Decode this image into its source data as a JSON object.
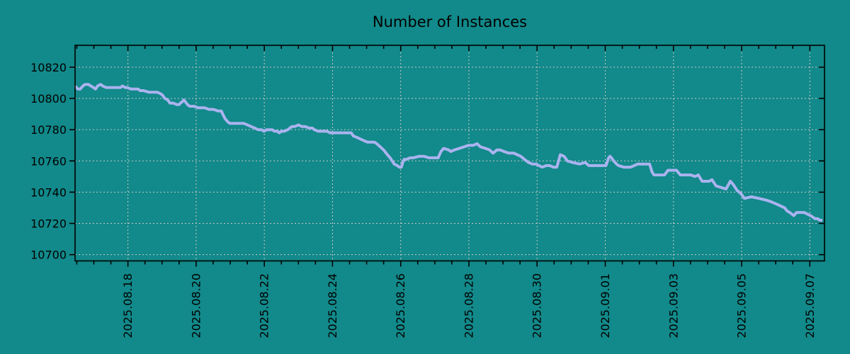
{
  "title": "Number of Instances",
  "colors": {
    "background": "#12898a",
    "line": "#aab3ef",
    "grid": "#c8c8c8",
    "axis": "#000000",
    "text": "#000000"
  },
  "chart_data": {
    "type": "line",
    "title": "Number of Instances",
    "xlabel": "",
    "ylabel": "",
    "grid": true,
    "legend": "none",
    "x_unit": "days_since_2025-08-16",
    "x_range": [
      0.45,
      22.43
    ],
    "y_range": [
      10696,
      10834
    ],
    "y_ticks": [
      10700,
      10720,
      10740,
      10760,
      10780,
      10800,
      10820
    ],
    "x_ticks": [
      {
        "day": 2,
        "label": "2025.08.18"
      },
      {
        "day": 4,
        "label": "2025.08.20"
      },
      {
        "day": 6,
        "label": "2025.08.22"
      },
      {
        "day": 8,
        "label": "2025.08.24"
      },
      {
        "day": 10,
        "label": "2025.08.26"
      },
      {
        "day": 12,
        "label": "2025.08.28"
      },
      {
        "day": 14,
        "label": "2025.08.30"
      },
      {
        "day": 16,
        "label": "2025.09.01"
      },
      {
        "day": 18,
        "label": "2025.09.03"
      },
      {
        "day": 20,
        "label": "2025.09.05"
      },
      {
        "day": 22,
        "label": "2025.09.07"
      }
    ],
    "minor_tick_step_days": 0.5,
    "series": [
      {
        "name": "Number of Instances",
        "points": [
          [
            0.45,
            10808
          ],
          [
            0.53,
            10806
          ],
          [
            0.6,
            10806
          ],
          [
            0.68,
            10808
          ],
          [
            0.74,
            10809
          ],
          [
            0.84,
            10809
          ],
          [
            0.91,
            10808
          ],
          [
            0.99,
            10807
          ],
          [
            1.05,
            10806
          ],
          [
            1.11,
            10808
          ],
          [
            1.2,
            10809
          ],
          [
            1.26,
            10808
          ],
          [
            1.36,
            10807
          ],
          [
            1.47,
            10807
          ],
          [
            1.57,
            10807
          ],
          [
            1.67,
            10807
          ],
          [
            1.78,
            10807
          ],
          [
            1.84,
            10808
          ],
          [
            1.92,
            10807
          ],
          [
            1.98,
            10807
          ],
          [
            2.09,
            10806
          ],
          [
            2.19,
            10806
          ],
          [
            2.3,
            10806
          ],
          [
            2.36,
            10805
          ],
          [
            2.46,
            10805
          ],
          [
            2.61,
            10804
          ],
          [
            2.75,
            10804
          ],
          [
            2.86,
            10804
          ],
          [
            2.96,
            10803
          ],
          [
            3.02,
            10802
          ],
          [
            3.08,
            10800
          ],
          [
            3.17,
            10799
          ],
          [
            3.23,
            10797
          ],
          [
            3.33,
            10797
          ],
          [
            3.44,
            10796
          ],
          [
            3.5,
            10796
          ],
          [
            3.54,
            10797
          ],
          [
            3.6,
            10798
          ],
          [
            3.64,
            10799
          ],
          [
            3.68,
            10798
          ],
          [
            3.75,
            10796
          ],
          [
            3.81,
            10795
          ],
          [
            3.89,
            10795
          ],
          [
            3.95,
            10795
          ],
          [
            4.06,
            10794
          ],
          [
            4.16,
            10794
          ],
          [
            4.26,
            10794
          ],
          [
            4.37,
            10793
          ],
          [
            4.51,
            10793
          ],
          [
            4.64,
            10792
          ],
          [
            4.74,
            10792
          ],
          [
            4.78,
            10790
          ],
          [
            4.85,
            10787
          ],
          [
            4.93,
            10785
          ],
          [
            4.99,
            10784
          ],
          [
            5.09,
            10784
          ],
          [
            5.2,
            10784
          ],
          [
            5.3,
            10784
          ],
          [
            5.4,
            10784
          ],
          [
            5.51,
            10783
          ],
          [
            5.61,
            10782
          ],
          [
            5.72,
            10781
          ],
          [
            5.82,
            10780
          ],
          [
            5.92,
            10780
          ],
          [
            5.99,
            10779
          ],
          [
            6.07,
            10780
          ],
          [
            6.13,
            10780
          ],
          [
            6.23,
            10780
          ],
          [
            6.3,
            10779
          ],
          [
            6.38,
            10779
          ],
          [
            6.44,
            10778
          ],
          [
            6.5,
            10779
          ],
          [
            6.58,
            10779
          ],
          [
            6.69,
            10780
          ],
          [
            6.75,
            10781
          ],
          [
            6.81,
            10782
          ],
          [
            6.89,
            10782
          ],
          [
            7.0,
            10783
          ],
          [
            7.1,
            10782
          ],
          [
            7.2,
            10782
          ],
          [
            7.31,
            10781
          ],
          [
            7.41,
            10781
          ],
          [
            7.47,
            10780
          ],
          [
            7.58,
            10779
          ],
          [
            7.64,
            10779
          ],
          [
            7.74,
            10779
          ],
          [
            7.84,
            10779
          ],
          [
            7.93,
            10778
          ],
          [
            7.99,
            10778
          ],
          [
            8.13,
            10778
          ],
          [
            8.34,
            10778
          ],
          [
            8.55,
            10778
          ],
          [
            8.61,
            10776
          ],
          [
            8.72,
            10775
          ],
          [
            8.82,
            10774
          ],
          [
            8.92,
            10773
          ],
          [
            9.03,
            10772
          ],
          [
            9.13,
            10772
          ],
          [
            9.23,
            10772
          ],
          [
            9.3,
            10771
          ],
          [
            9.4,
            10769
          ],
          [
            9.5,
            10767
          ],
          [
            9.61,
            10764
          ],
          [
            9.69,
            10762
          ],
          [
            9.75,
            10760
          ],
          [
            9.81,
            10758
          ],
          [
            9.9,
            10757
          ],
          [
            9.96,
            10756
          ],
          [
            10.02,
            10756
          ],
          [
            10.06,
            10759
          ],
          [
            10.1,
            10761
          ],
          [
            10.17,
            10761
          ],
          [
            10.27,
            10762
          ],
          [
            10.37,
            10762
          ],
          [
            10.54,
            10763
          ],
          [
            10.68,
            10763
          ],
          [
            10.83,
            10762
          ],
          [
            10.95,
            10762
          ],
          [
            11.04,
            10762
          ],
          [
            11.1,
            10762
          ],
          [
            11.18,
            10766
          ],
          [
            11.26,
            10768
          ],
          [
            11.41,
            10767
          ],
          [
            11.47,
            10766
          ],
          [
            11.57,
            10767
          ],
          [
            11.72,
            10768
          ],
          [
            11.86,
            10769
          ],
          [
            11.99,
            10770
          ],
          [
            12.13,
            10770
          ],
          [
            12.24,
            10771
          ],
          [
            12.34,
            10769
          ],
          [
            12.49,
            10768
          ],
          [
            12.61,
            10767
          ],
          [
            12.71,
            10765
          ],
          [
            12.82,
            10767
          ],
          [
            12.92,
            10767
          ],
          [
            13.03,
            10766
          ],
          [
            13.17,
            10765
          ],
          [
            13.32,
            10765
          ],
          [
            13.42,
            10764
          ],
          [
            13.52,
            10763
          ],
          [
            13.63,
            10761
          ],
          [
            13.75,
            10759
          ],
          [
            13.86,
            10758
          ],
          [
            13.96,
            10758
          ],
          [
            14.06,
            10757
          ],
          [
            14.15,
            10756
          ],
          [
            14.27,
            10757
          ],
          [
            14.37,
            10757
          ],
          [
            14.48,
            10756
          ],
          [
            14.58,
            10756
          ],
          [
            14.68,
            10764
          ],
          [
            14.79,
            10763
          ],
          [
            14.89,
            10760
          ],
          [
            15.04,
            10759
          ],
          [
            15.25,
            10758
          ],
          [
            15.41,
            10759
          ],
          [
            15.52,
            10757
          ],
          [
            15.66,
            10757
          ],
          [
            15.79,
            10757
          ],
          [
            15.87,
            10757
          ],
          [
            15.93,
            10757
          ],
          [
            16.02,
            10757
          ],
          [
            16.1,
            10762
          ],
          [
            16.14,
            10763
          ],
          [
            16.18,
            10762
          ],
          [
            16.25,
            10760
          ],
          [
            16.33,
            10758
          ],
          [
            16.39,
            10757
          ],
          [
            16.54,
            10756
          ],
          [
            16.64,
            10756
          ],
          [
            16.74,
            10756
          ],
          [
            16.85,
            10757
          ],
          [
            16.95,
            10758
          ],
          [
            17.05,
            10758
          ],
          [
            17.16,
            10758
          ],
          [
            17.26,
            10758
          ],
          [
            17.3,
            10758
          ],
          [
            17.37,
            10753
          ],
          [
            17.43,
            10751
          ],
          [
            17.59,
            10751
          ],
          [
            17.74,
            10751
          ],
          [
            17.84,
            10754
          ],
          [
            17.99,
            10754
          ],
          [
            18.09,
            10754
          ],
          [
            18.2,
            10751
          ],
          [
            18.36,
            10751
          ],
          [
            18.51,
            10751
          ],
          [
            18.63,
            10750
          ],
          [
            18.73,
            10751
          ],
          [
            18.84,
            10747
          ],
          [
            19.05,
            10747
          ],
          [
            19.13,
            10748
          ],
          [
            19.25,
            10744
          ],
          [
            19.4,
            10743
          ],
          [
            19.54,
            10742
          ],
          [
            19.67,
            10747
          ],
          [
            19.75,
            10745
          ],
          [
            19.87,
            10741
          ],
          [
            19.98,
            10739
          ],
          [
            20.08,
            10736
          ],
          [
            20.29,
            10737
          ],
          [
            20.5,
            10736
          ],
          [
            20.7,
            10735
          ],
          [
            20.85,
            10734
          ],
          [
            21.06,
            10732
          ],
          [
            21.26,
            10730
          ],
          [
            21.33,
            10728
          ],
          [
            21.41,
            10727
          ],
          [
            21.47,
            10726
          ],
          [
            21.53,
            10725
          ],
          [
            21.61,
            10727
          ],
          [
            21.68,
            10727
          ],
          [
            21.78,
            10727
          ],
          [
            21.84,
            10727
          ],
          [
            21.92,
            10726
          ],
          [
            22.02,
            10725
          ],
          [
            22.09,
            10724
          ],
          [
            22.15,
            10723
          ],
          [
            22.23,
            10723
          ],
          [
            22.29,
            10722
          ],
          [
            22.37,
            10722
          ]
        ]
      }
    ]
  }
}
